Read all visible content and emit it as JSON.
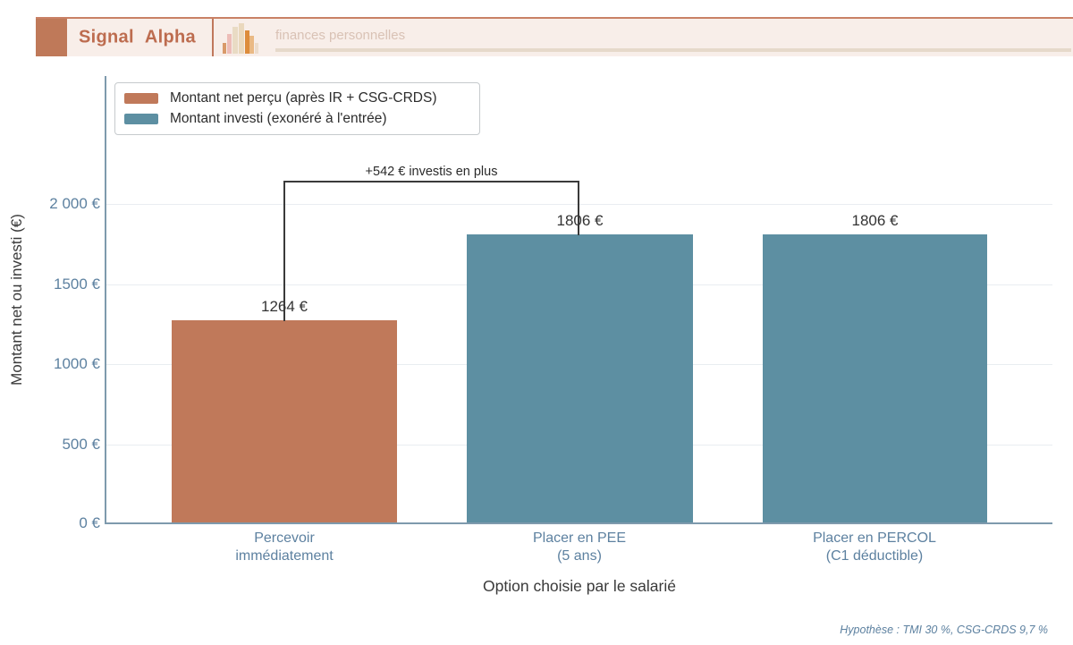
{
  "header": {
    "brand": "Signal Alpha",
    "tagline": "finances personnelles"
  },
  "legend": {
    "items": [
      {
        "label": "Montant net perçu (après IR + CSG-CRDS)",
        "color": "#c0795a"
      },
      {
        "label": "Montant investi (exonéré à l'entrée)",
        "color": "#5d8fa2"
      }
    ]
  },
  "chart_data": {
    "type": "bar",
    "categories": [
      {
        "line1": "Percevoir",
        "line2": "immédiatement"
      },
      {
        "line1": "Placer en PEE",
        "line2": "(5 ans)"
      },
      {
        "line1": "Placer en PERCOL",
        "line2": "(C1 déductible)"
      }
    ],
    "values": [
      1264,
      1806,
      1806
    ],
    "value_labels": [
      "1264 €",
      "1806 €",
      "1806 €"
    ],
    "bar_colors": [
      "#c0795a",
      "#5d8fa2",
      "#5d8fa2"
    ],
    "annotation": "+542 € investis en plus",
    "xlabel": "Option choisie par le salarié",
    "ylabel": "Montant net ou investi (€)",
    "ytick_labels": [
      "2 000 €",
      "1500 €",
      "1000 €",
      "500 €",
      "0 €"
    ],
    "ytick_values": [
      2000,
      1500,
      1000,
      500,
      0
    ],
    "ylim": [
      0,
      2800
    ],
    "grid": true,
    "legend_position": "upper-left"
  },
  "footer": {
    "note": "Hypothèse : TMI 30 %, CSG-CRDS 9,7 %"
  }
}
